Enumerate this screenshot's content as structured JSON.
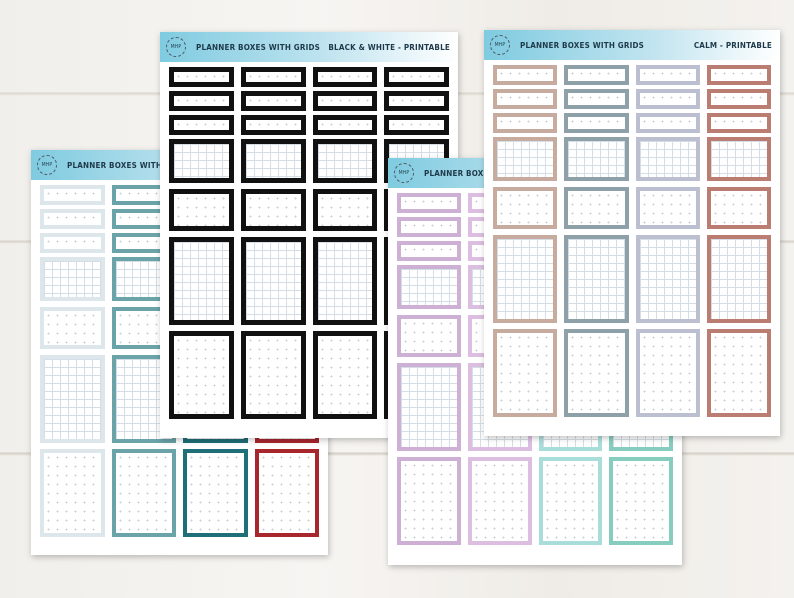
{
  "sheets": [
    {
      "id": "teal-red",
      "title": "PLANNER BOXES WITH GRIDS",
      "subtitle": "",
      "logo": "MHP",
      "colors": [
        "#dde6ea",
        "#6aa3a8",
        "#1f6f78",
        "#a8272d"
      ]
    },
    {
      "id": "black-white",
      "title": "PLANNER BOXES WITH GRIDS",
      "subtitle": "BLACK & WHITE - PRINTABLE",
      "logo": "MHP",
      "colors": [
        "#111111",
        "#111111",
        "#111111",
        "#111111"
      ]
    },
    {
      "id": "pastel",
      "title": "PLANNER BOXES WITH GRIDS",
      "subtitle": "",
      "logo": "MHP",
      "colors": [
        "#cdb0d4",
        "#dcbfe0",
        "#a9ddd9",
        "#86cdbf"
      ]
    },
    {
      "id": "calm",
      "title": "PLANNER BOXES WITH GRIDS",
      "subtitle": "CALM - PRINTABLE",
      "logo": "MHP",
      "colors": [
        "#c8ab9f",
        "#8fa1a8",
        "#bcbfcf",
        "#bb7d71"
      ]
    }
  ]
}
